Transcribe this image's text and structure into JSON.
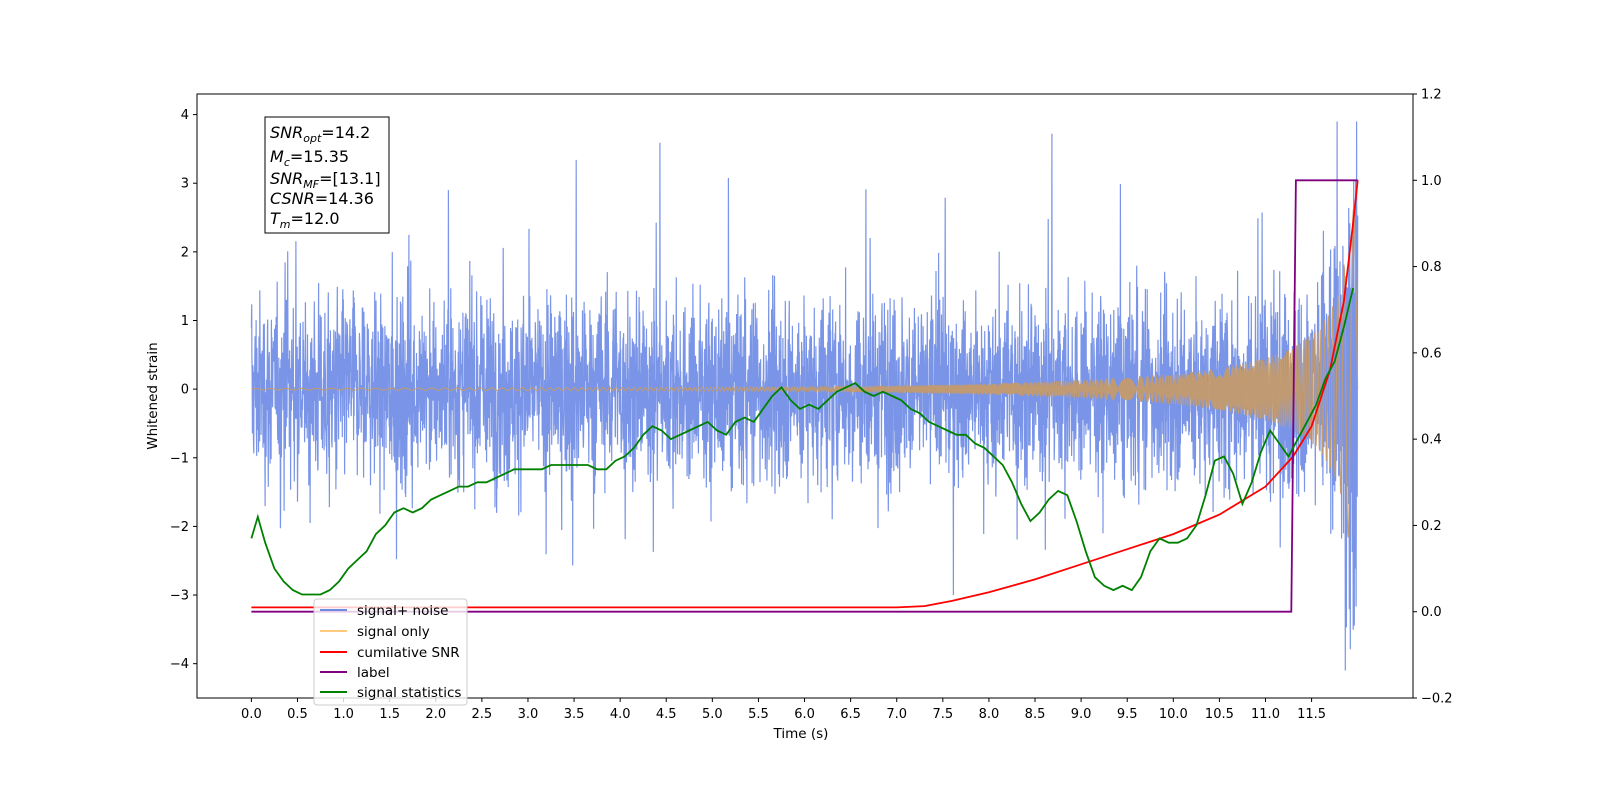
{
  "chart_data": {
    "type": "line",
    "xlabel": "Time (s)",
    "ylabel": "Whitened strain",
    "xlim": [
      -0.59,
      12.6
    ],
    "ylim": [
      -4.5,
      4.3
    ],
    "ylim_right": [
      -0.2,
      1.2
    ],
    "x_ticks": [
      "0.0",
      "0.5",
      "1.0",
      "1.5",
      "2.0",
      "2.5",
      "3.0",
      "3.5",
      "4.0",
      "4.5",
      "5.0",
      "5.5",
      "6.0",
      "6.5",
      "7.0",
      "7.5",
      "8.0",
      "8.5",
      "9.0",
      "9.5",
      "10.0",
      "10.5",
      "11.0",
      "11.5"
    ],
    "y_ticks_left": [
      "4",
      "3",
      "2",
      "1",
      "0",
      "−1",
      "−2",
      "−3",
      "−4"
    ],
    "y_ticks_right": [
      "1.2",
      "1.0",
      "0.8",
      "0.6",
      "0.4",
      "0.2",
      "0.0",
      "−0.2"
    ],
    "legend_placement": "lower-left",
    "annotation": {
      "snr_opt": "=14.2",
      "mc": "=15.35",
      "snr_mf": "=[13.1]",
      "csnr": "=14.36",
      "tm": "=12.0"
    },
    "series": [
      {
        "name": "signal+ noise",
        "color": "#6c8ae4",
        "axis": "left",
        "kind": "whitened noise band, approx amplitude range [-4.1, 3.9]"
      },
      {
        "name": "signal only",
        "color": "#ffb347",
        "axis": "left",
        "kind": "chirp, amplitude grows toward t=12.0",
        "envelope": {
          "x": [
            0.0,
            6.0,
            7.0,
            8.0,
            9.0,
            10.0,
            10.5,
            11.0,
            11.3,
            11.6,
            11.8,
            11.95,
            12.0
          ],
          "y": [
            0.01,
            0.03,
            0.05,
            0.08,
            0.13,
            0.22,
            0.3,
            0.45,
            0.6,
            0.9,
            1.4,
            2.6,
            3.0
          ]
        }
      },
      {
        "name": "cumilative SNR",
        "color": "#ff0000",
        "axis": "right",
        "x": [
          0.0,
          7.0,
          7.3,
          7.6,
          8.0,
          8.5,
          9.0,
          9.5,
          10.0,
          10.5,
          11.0,
          11.3,
          11.5,
          11.7,
          11.85,
          11.95,
          12.0
        ],
        "y": [
          0.01,
          0.01,
          0.013,
          0.025,
          0.045,
          0.075,
          0.11,
          0.145,
          0.18,
          0.225,
          0.29,
          0.36,
          0.43,
          0.56,
          0.72,
          0.9,
          1.0
        ]
      },
      {
        "name": "label",
        "color": "#800080",
        "axis": "right",
        "x": [
          0.0,
          11.28,
          11.33,
          12.0
        ],
        "y": [
          0.0,
          0.0,
          1.0,
          1.0
        ]
      },
      {
        "name": "signal statistics",
        "color": "#008000",
        "axis": "right",
        "x": [
          0.0,
          0.07,
          0.15,
          0.25,
          0.35,
          0.45,
          0.55,
          0.65,
          0.75,
          0.85,
          0.95,
          1.05,
          1.15,
          1.25,
          1.35,
          1.45,
          1.55,
          1.65,
          1.75,
          1.85,
          1.95,
          2.05,
          2.15,
          2.25,
          2.35,
          2.45,
          2.55,
          2.65,
          2.75,
          2.85,
          2.95,
          3.05,
          3.15,
          3.25,
          3.35,
          3.45,
          3.55,
          3.65,
          3.75,
          3.85,
          3.95,
          4.05,
          4.15,
          4.25,
          4.35,
          4.45,
          4.55,
          4.65,
          4.75,
          4.85,
          4.95,
          5.05,
          5.15,
          5.25,
          5.35,
          5.45,
          5.55,
          5.65,
          5.75,
          5.85,
          5.95,
          6.05,
          6.15,
          6.25,
          6.35,
          6.45,
          6.55,
          6.65,
          6.75,
          6.85,
          6.95,
          7.05,
          7.15,
          7.25,
          7.35,
          7.45,
          7.55,
          7.65,
          7.75,
          7.85,
          7.95,
          8.05,
          8.15,
          8.25,
          8.35,
          8.45,
          8.55,
          8.65,
          8.75,
          8.85,
          8.95,
          9.05,
          9.15,
          9.25,
          9.35,
          9.45,
          9.55,
          9.65,
          9.75,
          9.85,
          9.95,
          10.05,
          10.15,
          10.25,
          10.35,
          10.45,
          10.55,
          10.65,
          10.75,
          10.85,
          10.95,
          11.05,
          11.15,
          11.25,
          11.35,
          11.45,
          11.55,
          11.65,
          11.75,
          11.85,
          11.95
        ],
        "y": [
          0.17,
          0.22,
          0.16,
          0.1,
          0.07,
          0.05,
          0.04,
          0.04,
          0.04,
          0.05,
          0.07,
          0.1,
          0.12,
          0.14,
          0.18,
          0.2,
          0.23,
          0.24,
          0.23,
          0.24,
          0.26,
          0.27,
          0.28,
          0.29,
          0.29,
          0.3,
          0.3,
          0.31,
          0.32,
          0.33,
          0.33,
          0.33,
          0.33,
          0.34,
          0.34,
          0.34,
          0.34,
          0.34,
          0.33,
          0.33,
          0.35,
          0.36,
          0.38,
          0.41,
          0.43,
          0.42,
          0.4,
          0.41,
          0.42,
          0.43,
          0.44,
          0.42,
          0.41,
          0.44,
          0.45,
          0.44,
          0.47,
          0.5,
          0.52,
          0.49,
          0.47,
          0.48,
          0.47,
          0.49,
          0.51,
          0.52,
          0.53,
          0.51,
          0.5,
          0.51,
          0.5,
          0.49,
          0.47,
          0.46,
          0.44,
          0.43,
          0.42,
          0.41,
          0.41,
          0.39,
          0.38,
          0.36,
          0.34,
          0.3,
          0.25,
          0.21,
          0.23,
          0.26,
          0.28,
          0.27,
          0.21,
          0.14,
          0.08,
          0.06,
          0.05,
          0.06,
          0.05,
          0.08,
          0.14,
          0.17,
          0.16,
          0.16,
          0.17,
          0.2,
          0.27,
          0.35,
          0.36,
          0.32,
          0.25,
          0.3,
          0.37,
          0.42,
          0.39,
          0.36,
          0.4,
          0.44,
          0.48,
          0.54,
          0.58,
          0.66,
          0.75
        ]
      }
    ]
  }
}
